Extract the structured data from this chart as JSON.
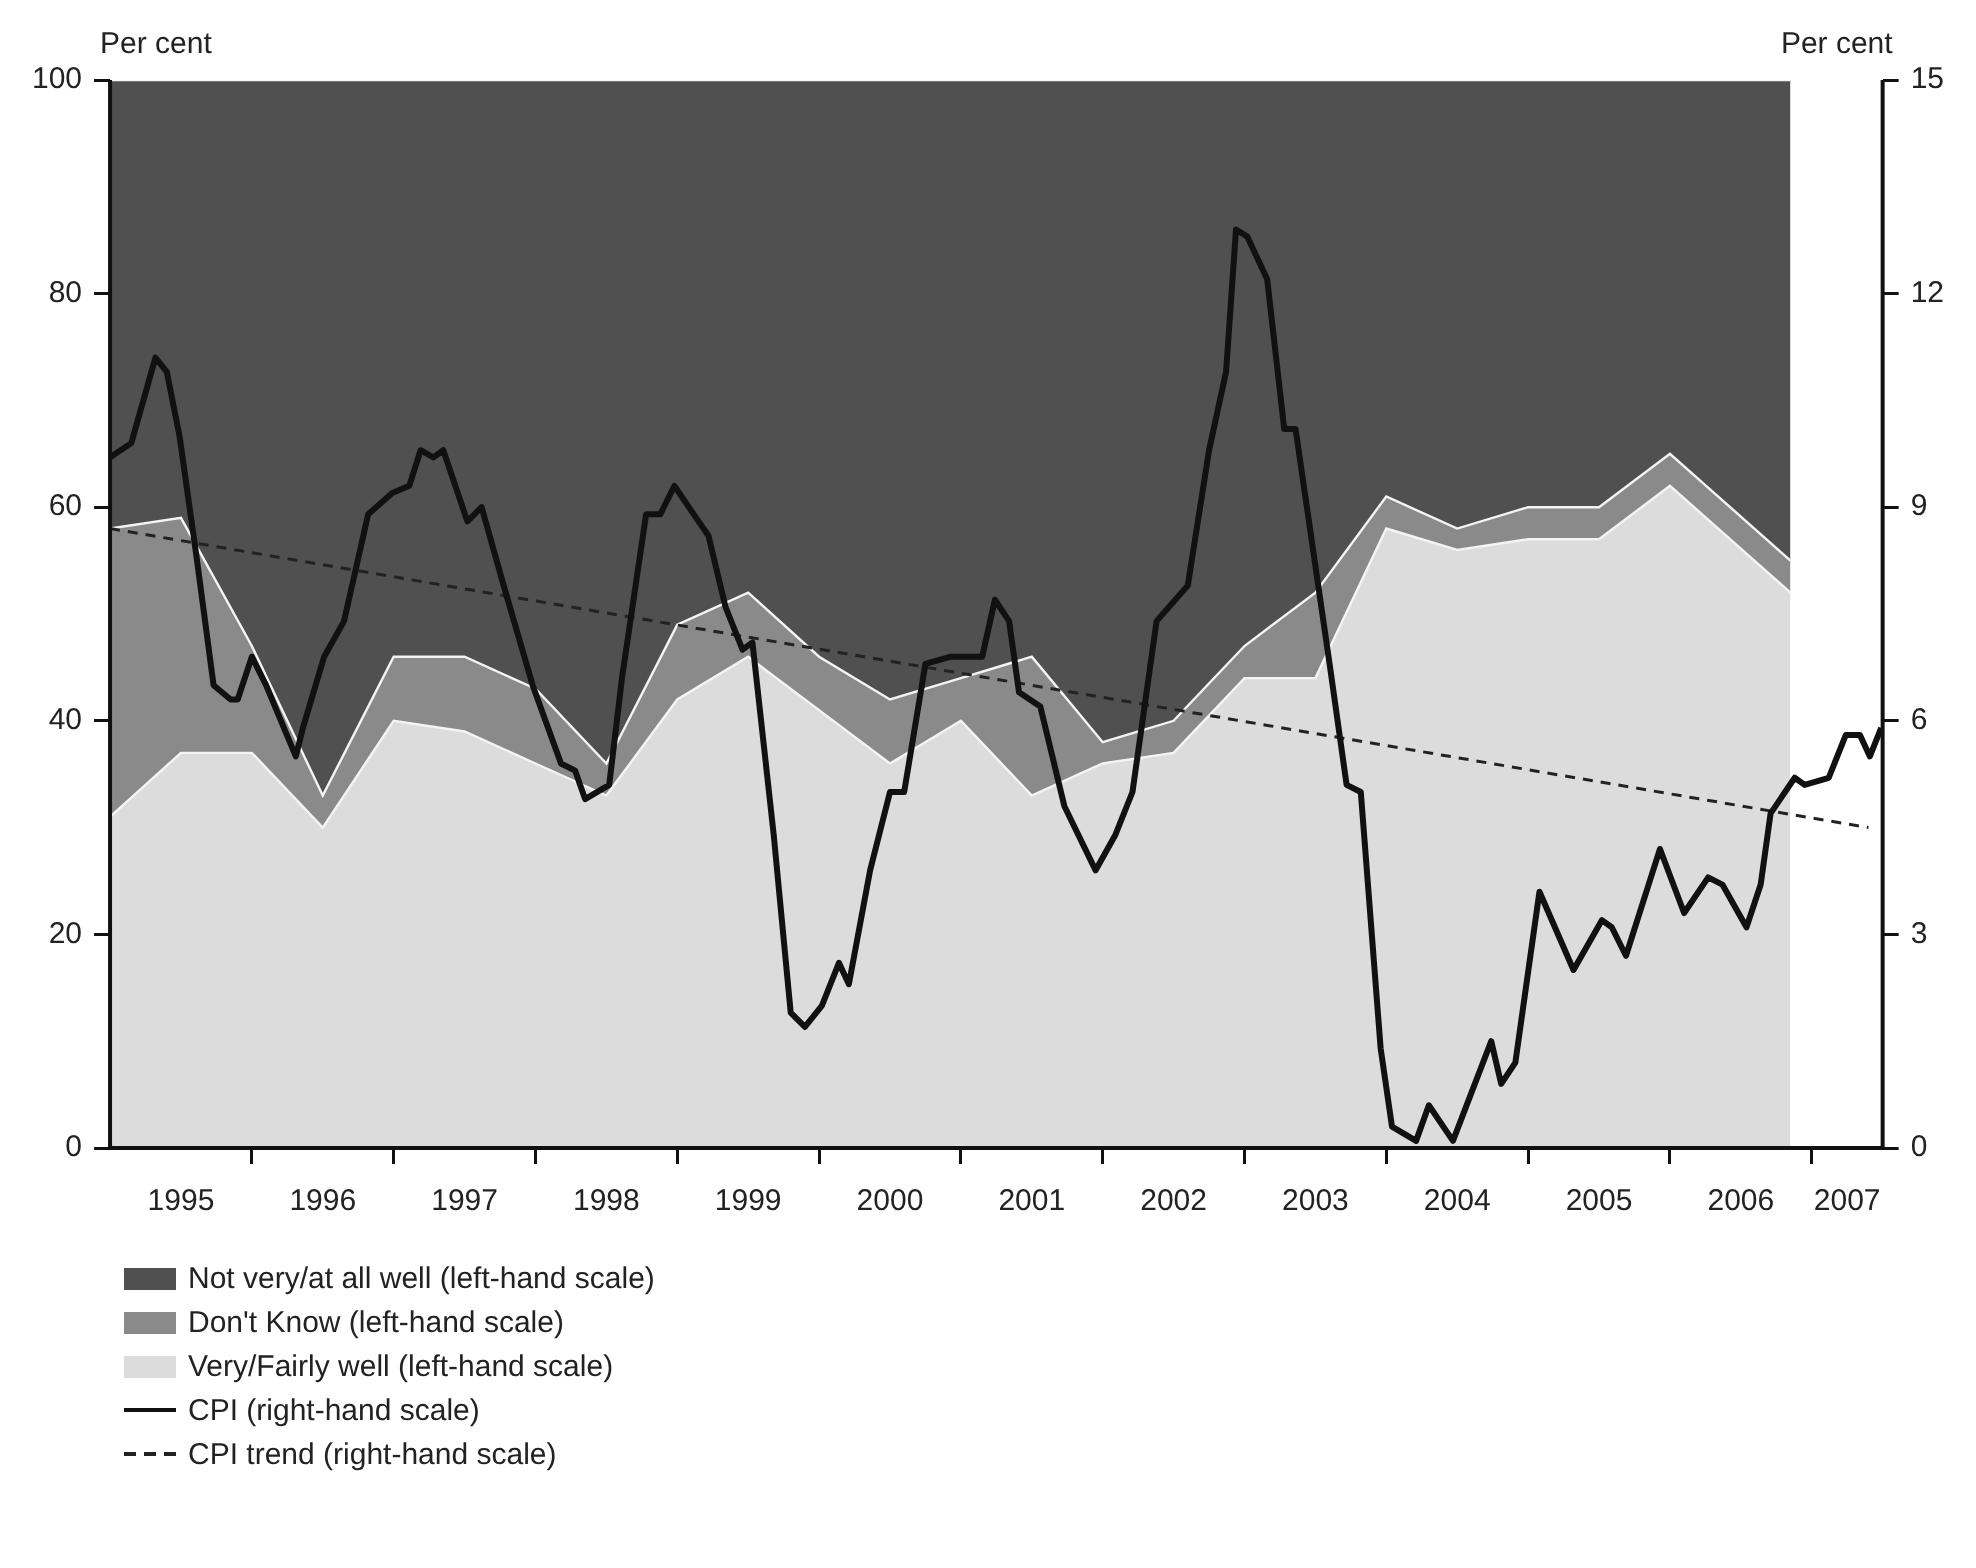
{
  "chart_data": {
    "type": "area",
    "stacked": true,
    "ylabel": "Per cent",
    "y2label": "Per cent",
    "x": [
      1995,
      1995.5,
      1996,
      1996.5,
      1997,
      1997.5,
      1998,
      1998.5,
      1999,
      1999.5,
      2000,
      2000.5,
      2001,
      2001.5,
      2002,
      2002.5,
      2003,
      2003.5,
      2004,
      2004.5,
      2005,
      2005.5,
      2006,
      2006.85
    ],
    "xlim": [
      1995,
      2007.5
    ],
    "xticks": [
      {
        "value": 1995.5,
        "label": "1995"
      },
      {
        "value": 1996,
        "label": null
      },
      {
        "value": 1996.5,
        "label": "1996"
      },
      {
        "value": 1997,
        "label": null
      },
      {
        "value": 1997.5,
        "label": "1997"
      },
      {
        "value": 1998,
        "label": null
      },
      {
        "value": 1998.5,
        "label": "1998"
      },
      {
        "value": 1999,
        "label": null
      },
      {
        "value": 1999.5,
        "label": "1999"
      },
      {
        "value": 2000,
        "label": null
      },
      {
        "value": 2000.5,
        "label": "2000"
      },
      {
        "value": 2001,
        "label": null
      },
      {
        "value": 2001.5,
        "label": "2001"
      },
      {
        "value": 2002,
        "label": null
      },
      {
        "value": 2002.5,
        "label": "2002"
      },
      {
        "value": 2003,
        "label": null
      },
      {
        "value": 2003.5,
        "label": "2003"
      },
      {
        "value": 2004,
        "label": null
      },
      {
        "value": 2004.5,
        "label": "2004"
      },
      {
        "value": 2005,
        "label": null
      },
      {
        "value": 2005.5,
        "label": "2005"
      },
      {
        "value": 2006,
        "label": null
      },
      {
        "value": 2006.5,
        "label": "2006"
      },
      {
        "value": 2007,
        "label": null
      },
      {
        "value": 2007.25,
        "label": "2007"
      }
    ],
    "ylim": [
      0,
      100
    ],
    "yticks": [
      0,
      20,
      40,
      60,
      80,
      100
    ],
    "y2lim": [
      0,
      15
    ],
    "y2ticks": [
      0,
      3,
      6,
      9,
      12,
      15
    ],
    "grid": false,
    "legend": "bottom left",
    "marker": "none",
    "series": [
      {
        "name": "Very/Fairly well (left-hand scale)",
        "color": "#dcdcdc",
        "values": [
          31,
          37,
          37,
          30,
          40,
          39,
          36,
          33,
          42,
          46,
          41,
          36,
          40,
          33,
          36,
          37,
          44,
          44,
          58,
          56,
          57,
          57,
          62,
          52
        ]
      },
      {
        "name": "Don't Know (left-hand scale)",
        "color": "#8a8a8a",
        "values": [
          27,
          22,
          10,
          3,
          6,
          7,
          7,
          3,
          7,
          6,
          5,
          6,
          4,
          13,
          2,
          3,
          3,
          8,
          3,
          2,
          3,
          3,
          3,
          3
        ]
      },
      {
        "name": "Not very/at all well (left-hand scale)",
        "color": "#505050",
        "values": [
          42,
          41,
          53,
          67,
          54,
          54,
          57,
          64,
          51,
          48,
          54,
          58,
          56,
          54,
          62,
          60,
          53,
          48,
          39,
          42,
          40,
          40,
          35,
          45
        ]
      },
      {
        "name": "CPI (right-hand scale)",
        "type": "line",
        "axis": "y2",
        "color": "#111111",
        "line_style": "solid",
        "x": [
          1995,
          1995.15,
          1995.32,
          1995.4,
          1995.49,
          1995.61,
          1995.73,
          1995.85,
          1995.9,
          1996,
          1996.1,
          1996.31,
          1996.36,
          1996.51,
          1996.65,
          1996.82,
          1996.99,
          1997.11,
          1997.19,
          1997.28,
          1997.35,
          1997.52,
          1997.62,
          1997.79,
          1997.98,
          1998.18,
          1998.28,
          1998.35,
          1998.52,
          1998.61,
          1998.78,
          1998.88,
          1998.98,
          1999.15,
          1999.22,
          1999.34,
          1999.46,
          1999.53,
          1999.68,
          1999.8,
          1999.9,
          2000.02,
          2000.14,
          2000.21,
          2000.36,
          2000.5,
          2000.6,
          2000.75,
          2000.93,
          2001.15,
          2001.24,
          2001.34,
          2001.41,
          2001.56,
          2001.73,
          2001.95,
          2002.09,
          2002.21,
          2002.38,
          2002.6,
          2002.75,
          2002.87,
          2002.94,
          2003.02,
          2003.16,
          2003.28,
          2003.36,
          2003.6,
          2003.72,
          2003.82,
          2003.96,
          2004.04,
          2004.21,
          2004.3,
          2004.47,
          2004.74,
          2004.81,
          2004.91,
          2005.08,
          2005.32,
          2005.52,
          2005.59,
          2005.69,
          2005.93,
          2006.1,
          2006.27,
          2006.37,
          2006.54,
          2006.64,
          2006.71,
          2006.88,
          2006.95,
          2007.12,
          2007.24,
          2007.34,
          2007.41,
          2007.49
        ],
        "values": [
          9.7,
          9.9,
          11.1,
          10.9,
          10.0,
          8.3,
          6.5,
          6.3,
          6.3,
          6.9,
          6.5,
          5.5,
          5.9,
          6.9,
          7.4,
          8.9,
          9.2,
          9.3,
          9.8,
          9.7,
          9.8,
          8.8,
          9.0,
          7.8,
          6.5,
          5.4,
          5.3,
          4.9,
          5.1,
          6.6,
          8.9,
          8.9,
          9.3,
          8.8,
          8.6,
          7.6,
          7.0,
          7.1,
          4.4,
          1.9,
          1.7,
          2.0,
          2.6,
          2.3,
          3.9,
          5.0,
          5.0,
          6.8,
          6.9,
          6.9,
          7.7,
          7.4,
          6.4,
          6.2,
          4.8,
          3.9,
          4.4,
          5.0,
          7.4,
          7.9,
          9.8,
          10.9,
          12.9,
          12.8,
          12.2,
          10.1,
          10.1,
          6.8,
          5.1,
          5.0,
          1.4,
          0.3,
          0.1,
          0.6,
          0.1,
          1.5,
          0.9,
          1.2,
          3.6,
          2.5,
          3.2,
          3.1,
          2.7,
          4.2,
          3.3,
          3.8,
          3.7,
          3.1,
          3.7,
          4.7,
          5.2,
          5.1,
          5.2,
          5.8,
          5.8,
          5.5,
          5.9
        ]
      },
      {
        "name": "CPI trend (right-hand scale)",
        "type": "line",
        "axis": "y2",
        "color": "#222222",
        "line_style": "dashed",
        "x": [
          1995,
          2007.4
        ],
        "values": [
          8.7,
          4.5
        ]
      }
    ]
  }
}
